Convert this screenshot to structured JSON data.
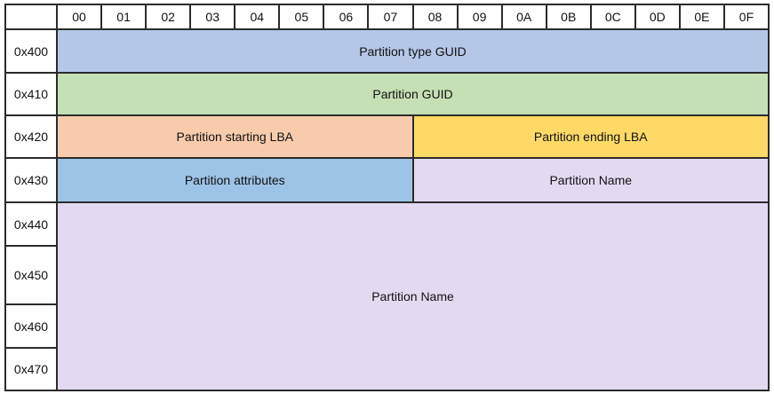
{
  "table": {
    "column_headers": [
      "00",
      "01",
      "02",
      "03",
      "04",
      "05",
      "06",
      "07",
      "08",
      "09",
      "0A",
      "0B",
      "0C",
      "0D",
      "0E",
      "0F"
    ],
    "rows": [
      {
        "offset": "0x400",
        "cells": [
          {
            "label": "Partition type GUID",
            "colspan": 16,
            "color": "#b4c7e7"
          }
        ]
      },
      {
        "offset": "0x410",
        "cells": [
          {
            "label": "Partition GUID",
            "colspan": 16,
            "color": "#c5e0b4"
          }
        ]
      },
      {
        "offset": "0x420",
        "cells": [
          {
            "label": "Partition starting LBA",
            "colspan": 8,
            "color": "#f8cbad"
          },
          {
            "label": "Partition ending LBA",
            "colspan": 8,
            "color": "#fed966"
          }
        ]
      },
      {
        "offset": "0x430",
        "cells": [
          {
            "label": "Partition attributes",
            "colspan": 8,
            "color": "#9dc3e6"
          },
          {
            "label": "Partition Name",
            "colspan": 8,
            "color": "#e3daf2"
          }
        ]
      },
      {
        "offset": "0x440",
        "cells": [
          {
            "label": "Partition Name",
            "colspan": 16,
            "rowspan": 4,
            "color": "#e3daf2"
          }
        ]
      },
      {
        "offset": "0x450",
        "cells": []
      },
      {
        "offset": "0x460",
        "cells": []
      },
      {
        "offset": "0x470",
        "cells": []
      }
    ]
  },
  "colors": {
    "border": "#2b2b2b",
    "header_background": "#ffffff",
    "text": "#111111"
  }
}
